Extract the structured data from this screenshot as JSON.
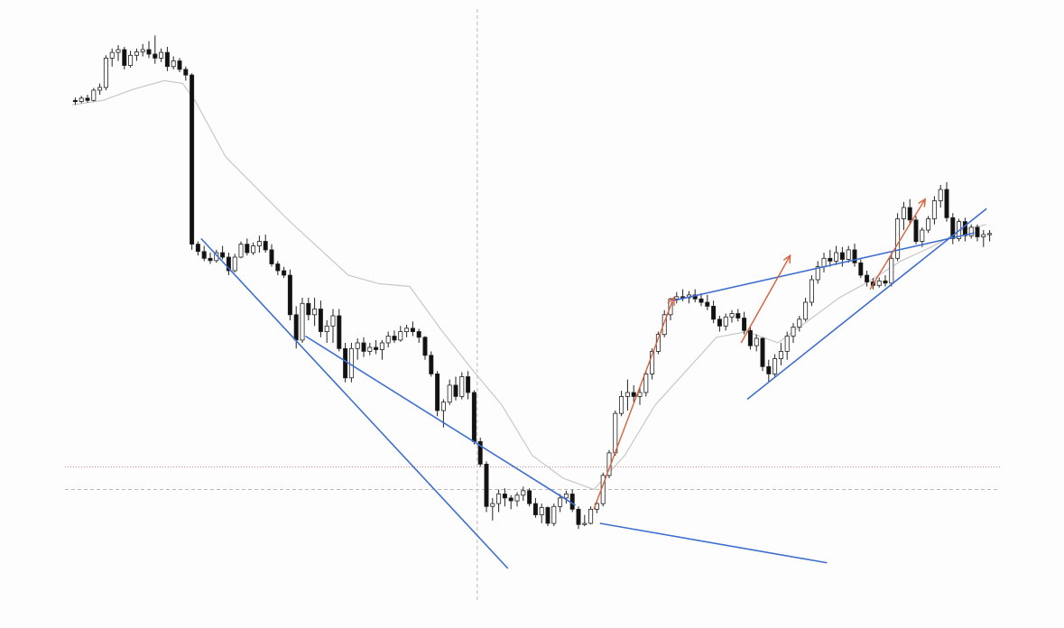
{
  "chart_data": {
    "type": "candlestick",
    "title": "",
    "xlabel": "",
    "ylabel": "",
    "grid": false,
    "legend": "none",
    "ylim": [
      0,
      1000
    ],
    "xlim": [
      0,
      150
    ],
    "colors": {
      "background": "#fdfdfd",
      "bull_fill": "#ffffff",
      "bear_fill": "#111111",
      "candle_outline": "#222222",
      "moving_average": "#c8c8c8",
      "trendline": "#3f6fcf",
      "arrow": "#d9603c",
      "crosshair": "#b9b9b9",
      "level_line": "#e08a8a"
    },
    "candles": [
      [
        0,
        870,
        875,
        862,
        868
      ],
      [
        1,
        868,
        878,
        865,
        874
      ],
      [
        2,
        874,
        880,
        866,
        870
      ],
      [
        3,
        870,
        892,
        868,
        888
      ],
      [
        4,
        888,
        900,
        880,
        893
      ],
      [
        5,
        893,
        950,
        888,
        945
      ],
      [
        6,
        945,
        962,
        930,
        955
      ],
      [
        7,
        955,
        968,
        940,
        960
      ],
      [
        8,
        960,
        965,
        925,
        932
      ],
      [
        9,
        932,
        958,
        928,
        950
      ],
      [
        10,
        950,
        962,
        940,
        956
      ],
      [
        11,
        956,
        970,
        948,
        960
      ],
      [
        12,
        960,
        975,
        945,
        952
      ],
      [
        13,
        952,
        985,
        935,
        945
      ],
      [
        14,
        945,
        962,
        938,
        955
      ],
      [
        15,
        955,
        965,
        922,
        930
      ],
      [
        16,
        930,
        948,
        925,
        940
      ],
      [
        17,
        940,
        945,
        920,
        925
      ],
      [
        18,
        925,
        930,
        905,
        915
      ],
      [
        19,
        915,
        918,
        605,
        615
      ],
      [
        20,
        615,
        620,
        595,
        602
      ],
      [
        21,
        602,
        612,
        585,
        590
      ],
      [
        22,
        590,
        600,
        580,
        586
      ],
      [
        23,
        586,
        605,
        582,
        600
      ],
      [
        24,
        600,
        612,
        588,
        592
      ],
      [
        25,
        592,
        600,
        560,
        568
      ],
      [
        26,
        568,
        598,
        565,
        592
      ],
      [
        27,
        592,
        620,
        590,
        615
      ],
      [
        28,
        615,
        625,
        595,
        600
      ],
      [
        29,
        600,
        618,
        596,
        612
      ],
      [
        30,
        612,
        630,
        600,
        620
      ],
      [
        31,
        620,
        632,
        600,
        605
      ],
      [
        32,
        605,
        615,
        575,
        580
      ],
      [
        33,
        580,
        585,
        560,
        568
      ],
      [
        34,
        568,
        575,
        555,
        560
      ],
      [
        35,
        560,
        570,
        480,
        490
      ],
      [
        36,
        490,
        505,
        430,
        445
      ],
      [
        37,
        445,
        520,
        440,
        510
      ],
      [
        38,
        510,
        520,
        480,
        490
      ],
      [
        39,
        490,
        520,
        470,
        500
      ],
      [
        40,
        500,
        515,
        450,
        460
      ],
      [
        41,
        460,
        480,
        440,
        470
      ],
      [
        42,
        470,
        500,
        440,
        488
      ],
      [
        43,
        488,
        500,
        425,
        430
      ],
      [
        44,
        430,
        440,
        370,
        378
      ],
      [
        45,
        378,
        440,
        370,
        430
      ],
      [
        46,
        430,
        448,
        410,
        440
      ],
      [
        47,
        440,
        450,
        415,
        425
      ],
      [
        48,
        425,
        440,
        418,
        432
      ],
      [
        49,
        432,
        445,
        420,
        428
      ],
      [
        50,
        428,
        445,
        410,
        440
      ],
      [
        51,
        440,
        460,
        432,
        452
      ],
      [
        52,
        452,
        462,
        440,
        445
      ],
      [
        53,
        445,
        470,
        442,
        460
      ],
      [
        54,
        460,
        472,
        450,
        466
      ],
      [
        55,
        466,
        478,
        452,
        460
      ],
      [
        56,
        460,
        465,
        440,
        450
      ],
      [
        57,
        450,
        452,
        410,
        418
      ],
      [
        58,
        418,
        425,
        380,
        385
      ],
      [
        59,
        385,
        390,
        310,
        320
      ],
      [
        60,
        320,
        340,
        290,
        335
      ],
      [
        61,
        335,
        375,
        330,
        365
      ],
      [
        62,
        365,
        380,
        338,
        345
      ],
      [
        63,
        345,
        388,
        340,
        380
      ],
      [
        64,
        380,
        390,
        340,
        352
      ],
      [
        65,
        352,
        356,
        260,
        265
      ],
      [
        66,
        265,
        272,
        220,
        225
      ],
      [
        67,
        225,
        230,
        140,
        150
      ],
      [
        68,
        150,
        165,
        125,
        155
      ],
      [
        69,
        155,
        180,
        140,
        172
      ],
      [
        70,
        172,
        182,
        150,
        165
      ],
      [
        71,
        165,
        170,
        145,
        160
      ],
      [
        72,
        160,
        175,
        150,
        170
      ],
      [
        73,
        170,
        185,
        160,
        178
      ],
      [
        74,
        178,
        182,
        150,
        155
      ],
      [
        75,
        155,
        165,
        130,
        135
      ],
      [
        76,
        135,
        155,
        120,
        148
      ],
      [
        77,
        148,
        150,
        115,
        120
      ],
      [
        78,
        120,
        155,
        115,
        150
      ],
      [
        79,
        150,
        172,
        140,
        165
      ],
      [
        80,
        165,
        178,
        155,
        172
      ],
      [
        81,
        172,
        180,
        140,
        145
      ],
      [
        82,
        145,
        150,
        110,
        118
      ],
      [
        83,
        118,
        135,
        115,
        120
      ],
      [
        84,
        120,
        150,
        118,
        145
      ],
      [
        85,
        145,
        160,
        138,
        155
      ],
      [
        86,
        155,
        210,
        150,
        205
      ],
      [
        87,
        205,
        250,
        200,
        245
      ],
      [
        88,
        245,
        320,
        240,
        315
      ],
      [
        89,
        315,
        355,
        310,
        345
      ],
      [
        90,
        345,
        375,
        320,
        352
      ],
      [
        91,
        352,
        365,
        335,
        345
      ],
      [
        92,
        345,
        360,
        330,
        352
      ],
      [
        93,
        352,
        390,
        345,
        385
      ],
      [
        94,
        385,
        430,
        375,
        425
      ],
      [
        95,
        425,
        460,
        420,
        455
      ],
      [
        96,
        455,
        498,
        450,
        490
      ],
      [
        97,
        490,
        520,
        480,
        518
      ],
      [
        98,
        518,
        530,
        510,
        522
      ],
      [
        99,
        522,
        535,
        514,
        520
      ],
      [
        100,
        520,
        532,
        510,
        525
      ],
      [
        101,
        525,
        535,
        512,
        518
      ],
      [
        102,
        518,
        528,
        505,
        512
      ],
      [
        103,
        512,
        525,
        498,
        505
      ],
      [
        104,
        505,
        515,
        475,
        482
      ],
      [
        105,
        482,
        488,
        460,
        470
      ],
      [
        106,
        470,
        492,
        462,
        486
      ],
      [
        107,
        486,
        498,
        476,
        492
      ],
      [
        108,
        492,
        500,
        478,
        484
      ],
      [
        109,
        484,
        495,
        455,
        462
      ],
      [
        110,
        462,
        468,
        428,
        435
      ],
      [
        111,
        435,
        455,
        425,
        448
      ],
      [
        112,
        448,
        450,
        390,
        398
      ],
      [
        113,
        398,
        410,
        370,
        385
      ],
      [
        114,
        385,
        420,
        380,
        412
      ],
      [
        115,
        412,
        440,
        400,
        425
      ],
      [
        116,
        425,
        460,
        410,
        452
      ],
      [
        117,
        452,
        475,
        440,
        468
      ],
      [
        118,
        468,
        488,
        460,
        482
      ],
      [
        119,
        482,
        520,
        478,
        512
      ],
      [
        120,
        512,
        560,
        505,
        552
      ],
      [
        121,
        552,
        585,
        545,
        575
      ],
      [
        122,
        575,
        600,
        565,
        590
      ],
      [
        123,
        590,
        605,
        575,
        585
      ],
      [
        124,
        585,
        612,
        578,
        600
      ],
      [
        125,
        600,
        610,
        575,
        588
      ],
      [
        126,
        588,
        612,
        582,
        605
      ],
      [
        127,
        605,
        616,
        575,
        582
      ],
      [
        128,
        582,
        588,
        555,
        560
      ],
      [
        129,
        560,
        568,
        540,
        548
      ],
      [
        130,
        548,
        555,
        535,
        542
      ],
      [
        131,
        542,
        556,
        538,
        550
      ],
      [
        132,
        550,
        560,
        540,
        546
      ],
      [
        133,
        546,
        600,
        540,
        590
      ],
      [
        134,
        590,
        670,
        585,
        660
      ],
      [
        135,
        660,
        690,
        640,
        680
      ],
      [
        136,
        680,
        695,
        650,
        658
      ],
      [
        137,
        658,
        665,
        615,
        620
      ],
      [
        138,
        620,
        645,
        610,
        640
      ],
      [
        139,
        640,
        665,
        635,
        660
      ],
      [
        140,
        660,
        700,
        650,
        692
      ],
      [
        141,
        692,
        720,
        680,
        712
      ],
      [
        142,
        712,
        725,
        655,
        662
      ],
      [
        143,
        662,
        670,
        615,
        625
      ],
      [
        144,
        625,
        660,
        620,
        655
      ],
      [
        145,
        655,
        662,
        620,
        630
      ],
      [
        146,
        630,
        650,
        625,
        645
      ],
      [
        147,
        645,
        650,
        620,
        628
      ],
      [
        148,
        628,
        640,
        610,
        632
      ],
      [
        149,
        632,
        640,
        620,
        634
      ]
    ],
    "moving_average": [
      [
        0,
        862
      ],
      [
        5,
        870
      ],
      [
        10,
        890
      ],
      [
        15,
        905
      ],
      [
        18,
        900
      ],
      [
        20,
        870
      ],
      [
        25,
        770
      ],
      [
        30,
        715
      ],
      [
        35,
        660
      ],
      [
        40,
        610
      ],
      [
        45,
        560
      ],
      [
        50,
        545
      ],
      [
        55,
        540
      ],
      [
        60,
        465
      ],
      [
        65,
        395
      ],
      [
        70,
        330
      ],
      [
        75,
        240
      ],
      [
        80,
        200
      ],
      [
        85,
        180
      ],
      [
        90,
        240
      ],
      [
        95,
        330
      ],
      [
        100,
        390
      ],
      [
        105,
        450
      ],
      [
        110,
        460
      ],
      [
        115,
        440
      ],
      [
        120,
        480
      ],
      [
        125,
        520
      ],
      [
        130,
        550
      ],
      [
        135,
        585
      ],
      [
        140,
        610
      ],
      [
        145,
        640
      ],
      [
        149,
        650
      ]
    ],
    "trendlines": [
      {
        "from": [
          21,
          625
        ],
        "to": [
          71,
          40
        ]
      },
      {
        "from": [
          38,
          452
        ],
        "to": [
          82,
          152
        ]
      },
      {
        "from": [
          86,
          120
        ],
        "to": [
          123,
          50
        ]
      },
      {
        "from": [
          98,
          515
        ],
        "to": [
          147,
          635
        ]
      },
      {
        "from": [
          110,
          340
        ],
        "to": [
          149,
          678
        ]
      }
    ],
    "arrows": [
      {
        "from": [
          85,
          145
        ],
        "to": [
          98,
          520
        ]
      },
      {
        "from": [
          109,
          440
        ],
        "to": [
          117,
          595
        ]
      },
      {
        "from": [
          130,
          535
        ],
        "to": [
          139,
          695
        ]
      }
    ],
    "crosshair": {
      "x": 66
    },
    "levels": [
      {
        "y": 220,
        "style": "dotted"
      },
      {
        "y": 180,
        "style": "dashed"
      }
    ]
  }
}
